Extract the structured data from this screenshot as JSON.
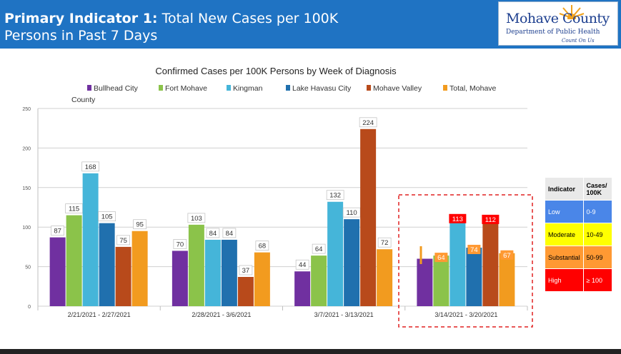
{
  "header": {
    "title_bold": "Primary Indicator 1:",
    "title_rest": " Total New Cases per 100K",
    "title_line2": "Persons in Past 7 Days"
  },
  "logo": {
    "main": "Mohave County",
    "sub": "Department of Public Health",
    "tag": "Count On Us"
  },
  "chart_data": {
    "type": "bar",
    "title": "Confirmed Cases per 100K Persons by Week of Diagnosis",
    "categories": [
      "2/21/2021 - 2/27/2021",
      "2/28/2021 - 3/6/2021",
      "3/7/2021 - 3/13/2021",
      "3/14/2021 - 3/20/2021"
    ],
    "ylim": [
      0,
      250
    ],
    "yticks": [
      0,
      50,
      100,
      150,
      200,
      250
    ],
    "grid": true,
    "legend_position": "top",
    "series": [
      {
        "name": "Bullhead City",
        "color": "#7030a0",
        "values": [
          87,
          70,
          44,
          60
        ],
        "labels": [
          "87",
          "70",
          "44",
          ""
        ]
      },
      {
        "name": "Fort Mohave",
        "color": "#8bc34a",
        "values": [
          115,
          103,
          64,
          64
        ],
        "labels": [
          "115",
          "103",
          "64",
          "64"
        ]
      },
      {
        "name": "Kingman",
        "color": "#45b5d9",
        "values": [
          168,
          84,
          132,
          113
        ],
        "labels": [
          "168",
          "84",
          "132",
          "113"
        ]
      },
      {
        "name": "Lake Havasu City",
        "color": "#2070ae",
        "values": [
          105,
          84,
          110,
          74
        ],
        "labels": [
          "105",
          "84",
          "110",
          "74"
        ]
      },
      {
        "name": "Mohave Valley",
        "color": "#b84a1b",
        "values": [
          75,
          37,
          224,
          112
        ],
        "labels": [
          "75",
          "37",
          "224",
          "112"
        ]
      },
      {
        "name": "Total, Mohave County",
        "color": "#f29b1f",
        "values": [
          95,
          68,
          72,
          67
        ],
        "labels": [
          "95",
          "68",
          "72",
          "67"
        ]
      }
    ],
    "last_week_label_colors": [
      "#ff9933",
      "#ff9933",
      "#ff0000",
      "#ff9933",
      "#ff0000",
      "#ff9933"
    ],
    "highlight_box_color": "#e02020"
  },
  "indicator_table": {
    "header": [
      "Indicator",
      "Cases/ 100K"
    ],
    "rows": [
      {
        "level": "Low",
        "range": "0-9",
        "bg": "#4a86e8",
        "fg": "#ffffff"
      },
      {
        "level": "Moderate",
        "range": "10-49",
        "bg": "#ffff00",
        "fg": "#000000"
      },
      {
        "level": "Substantial",
        "range": "50-99",
        "bg": "#ff9933",
        "fg": "#000000"
      },
      {
        "level": "High",
        "range": "≥ 100",
        "bg": "#ff0000",
        "fg": "#ffffff"
      }
    ]
  }
}
